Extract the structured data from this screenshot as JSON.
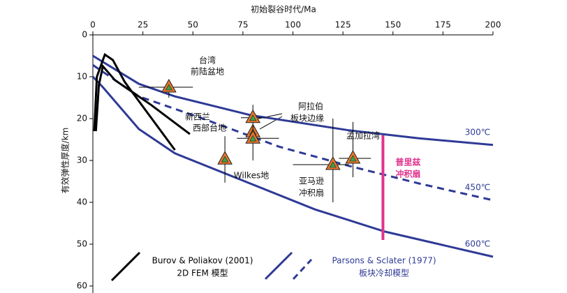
{
  "chart_data": {
    "type": "line",
    "x_label": "初始裂谷时代/Ma",
    "y_label": "有效弹性厚度/km",
    "xlim": [
      0,
      200
    ],
    "ylim": [
      0,
      60
    ],
    "y_inverted": true,
    "x_axis_position": "top",
    "xticks": [
      0,
      25,
      50,
      75,
      100,
      125,
      150,
      175,
      200
    ],
    "yticks": [
      0,
      10,
      20,
      30,
      40,
      50,
      60
    ],
    "series": [
      {
        "name": "300℃",
        "color": "#2e3a96",
        "style": "solid",
        "x": [
          0,
          23,
          41,
          79,
          128,
          163,
          200
        ],
        "values": [
          5,
          11.7,
          14.7,
          19.2,
          22.8,
          24.7,
          26.3
        ]
      },
      {
        "name": "450℃",
        "color": "#2e3a96",
        "style": "dashed",
        "x": [
          0,
          23,
          55,
          93,
          128,
          163,
          200
        ],
        "values": [
          7.2,
          14.7,
          20,
          26.7,
          31.3,
          35.5,
          39.5
        ]
      },
      {
        "name": "600℃",
        "color": "#2e3a96",
        "style": "solid",
        "x": [
          0,
          5,
          23,
          41,
          76,
          111,
          146,
          200
        ],
        "values": [
          10,
          12.5,
          22.5,
          28.3,
          35,
          41.7,
          47,
          53
        ]
      },
      {
        "color": "#000000",
        "style": "solid",
        "x": [
          0.7,
          2,
          6,
          10,
          16,
          41
        ],
        "values": [
          23,
          10,
          4.7,
          6,
          11.3,
          27.5
        ]
      },
      {
        "color": "#000000",
        "style": "solid",
        "x": [
          1.5,
          3,
          5,
          11,
          29,
          48.5
        ],
        "values": [
          23,
          12,
          7.5,
          10.8,
          16.7,
          23.7
        ]
      }
    ],
    "points": [
      {
        "x": 38,
        "y": 12.5,
        "xerr": [
          23,
          50
        ],
        "yerr": [
          11.3,
          15
        ]
      },
      {
        "x": 80,
        "y": 19.8,
        "xerr": [
          74,
          86
        ],
        "yerr": [
          16.7,
          22.5
        ]
      },
      {
        "x": 80,
        "y": 23.2
      },
      {
        "x": 80,
        "y": 24.7,
        "xerr": [
          72,
          93
        ],
        "yerr": [
          21.7,
          30
        ]
      },
      {
        "x": 66,
        "y": 29.7,
        "yerr": [
          24.2,
          35.3
        ]
      },
      {
        "x": 120,
        "y": 31,
        "xerr": [
          100,
          128
        ],
        "yerr": [
          20,
          40
        ]
      },
      {
        "x": 130,
        "y": 29.5,
        "xerr": [
          123,
          139
        ],
        "yerr": [
          20.8,
          34
        ]
      }
    ],
    "marker_colors": [
      "#e8762b",
      "#3aa34a"
    ],
    "range_bar": {
      "x": 145,
      "y": [
        24,
        49
      ],
      "color": "#e0338f",
      "label": [
        "普里兹",
        "冲积扇"
      ]
    },
    "annotations": [
      "台湾",
      "前陆盆地",
      "新西兰",
      "西部台地",
      "阿拉伯",
      "板块边缘",
      "Wilkes地",
      "亚马逊",
      "冲积扇",
      "孟加拉湾"
    ],
    "legend": [
      {
        "lines": [
          "Burov & Poliakov (2001)",
          "2D FEM 模型"
        ],
        "color": "#000000"
      },
      {
        "lines": [
          "Parsons & Sclater (1977)",
          "板块冷却模型"
        ],
        "color": "#2e3a96"
      }
    ]
  }
}
